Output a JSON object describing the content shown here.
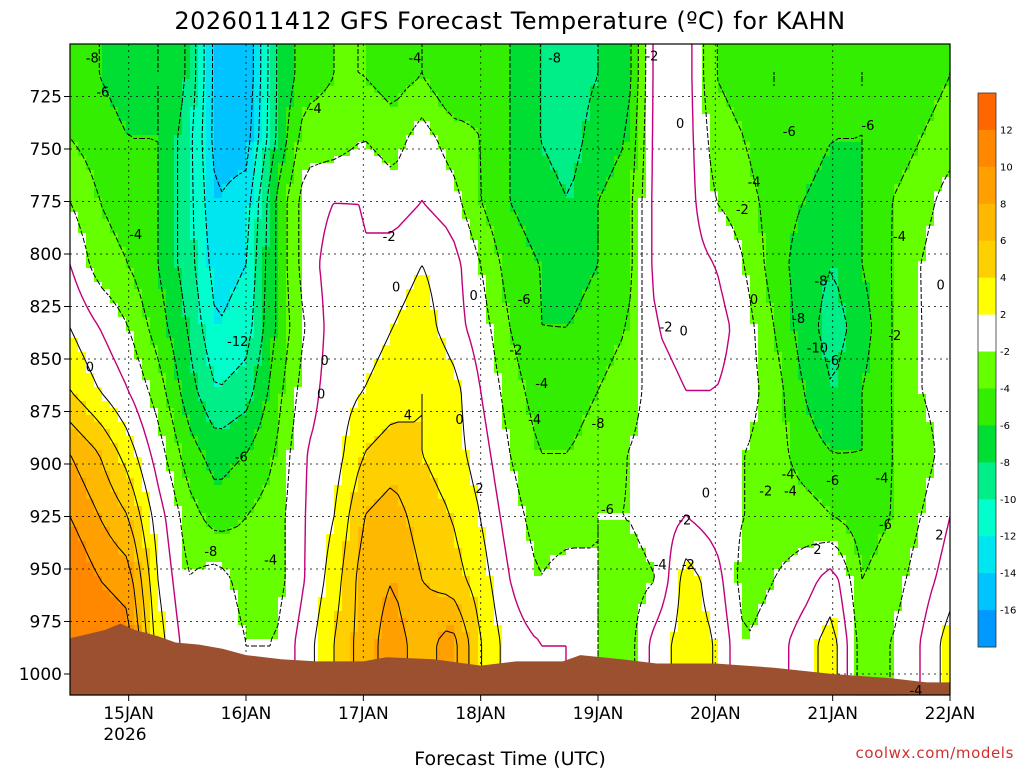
{
  "chart_data": {
    "type": "heatmap",
    "title": "2026011412 GFS Forecast Temperature (ºC) for KAHN",
    "xlabel": "Forecast Time (UTC)",
    "ylabel": "",
    "credit": "coolwx.com/models",
    "year_label": "2026",
    "x_ticks": [
      "15JAN",
      "16JAN",
      "17JAN",
      "18JAN",
      "19JAN",
      "20JAN",
      "21JAN",
      "22JAN"
    ],
    "xlim_days": [
      14.5,
      22.0
    ],
    "y_ticks": [
      725,
      750,
      775,
      800,
      825,
      850,
      875,
      900,
      925,
      950,
      975,
      1000
    ],
    "ylim_hpa": [
      700,
      1010
    ],
    "y_inverted": true,
    "colorbar": {
      "labels": [
        12,
        10,
        8,
        6,
        4,
        2,
        -2,
        -4,
        -6,
        -8,
        -10,
        -12,
        -14,
        -16
      ],
      "bins": [
        {
          "min": 12,
          "max": 14,
          "color": "#ff6600"
        },
        {
          "min": 10,
          "max": 12,
          "color": "#ff8800"
        },
        {
          "min": 8,
          "max": 10,
          "color": "#ffa000"
        },
        {
          "min": 6,
          "max": 8,
          "color": "#ffb800"
        },
        {
          "min": 4,
          "max": 6,
          "color": "#ffd000"
        },
        {
          "min": 2,
          "max": 4,
          "color": "#ffff00"
        },
        {
          "min": -2,
          "max": 2,
          "color": "#ffffff"
        },
        {
          "min": -4,
          "max": -2,
          "color": "#66ff00"
        },
        {
          "min": -6,
          "max": -4,
          "color": "#33ee00"
        },
        {
          "min": -8,
          "max": -6,
          "color": "#00dd33"
        },
        {
          "min": -10,
          "max": -8,
          "color": "#00ee88"
        },
        {
          "min": -12,
          "max": -10,
          "color": "#00ffcc"
        },
        {
          "min": -14,
          "max": -12,
          "color": "#00e6f0"
        },
        {
          "min": -16,
          "max": -14,
          "color": "#00c4ff"
        },
        {
          "min": -18,
          "max": -16,
          "color": "#0099ff"
        }
      ]
    },
    "temperature_grid": {
      "levels_hpa": [
        715,
        745,
        775,
        805,
        835,
        865,
        895,
        925,
        955,
        985
      ],
      "times_day": [
        14.5,
        14.75,
        15.0,
        15.25,
        15.5,
        15.75,
        16.0,
        16.25,
        16.5,
        16.75,
        17.0,
        17.25,
        17.5,
        17.75,
        18.0,
        18.25,
        18.5,
        18.75,
        19.0,
        19.25,
        19.5,
        19.75,
        20.0,
        20.25,
        20.5,
        20.75,
        21.0,
        21.25,
        21.5,
        21.75,
        22.0
      ],
      "values_c": [
        [
          -5,
          -6,
          -7,
          -6,
          -8,
          -15,
          -16,
          -8,
          -5,
          -4,
          -4,
          -5,
          -4,
          -6,
          -5,
          -6,
          -8,
          -9,
          -8,
          -7,
          1,
          1,
          -4,
          -5,
          -6,
          -5,
          -5,
          -6,
          -6,
          -5,
          -4
        ],
        [
          -4,
          -5,
          -6,
          -6,
          -9,
          -15,
          -15,
          -8,
          -3,
          -3,
          -2,
          -3,
          -1,
          -3,
          -4,
          -6,
          -8,
          -9,
          -7,
          -6,
          1,
          1,
          -3,
          -4,
          -6,
          -5,
          -6,
          -6,
          -5,
          -4,
          -3
        ],
        [
          -2,
          -4,
          -5,
          -6,
          -9,
          -14,
          -13,
          -6,
          -1,
          0,
          0,
          -1,
          0,
          -1,
          -4,
          -6,
          -7,
          -8,
          -6,
          -5,
          1,
          1,
          -2,
          -3,
          -5,
          -6,
          -7,
          -6,
          -4,
          -3,
          -1
        ],
        [
          0,
          -3,
          -4,
          -6,
          -9,
          -13,
          -12,
          -6,
          -1,
          1,
          0,
          1,
          2,
          1,
          -2,
          -5,
          -6,
          -7,
          -6,
          -5,
          1,
          1,
          0,
          -2,
          -5,
          -7,
          -8,
          -6,
          -4,
          -2,
          0
        ],
        [
          2,
          0,
          -2,
          -5,
          -8,
          -12,
          -11,
          -6,
          -2,
          1,
          1,
          2,
          3,
          1,
          -1,
          -4,
          -6,
          -6,
          -5,
          -4,
          0,
          1,
          1,
          -1,
          -4,
          -7,
          -9,
          -7,
          -4,
          -2,
          -1
        ],
        [
          4,
          2,
          0,
          -3,
          -7,
          -10,
          -9,
          -5,
          -1,
          1,
          2,
          3,
          4,
          3,
          0,
          -3,
          -5,
          -5,
          -4,
          -3,
          -1,
          0,
          0,
          -1,
          -3,
          -6,
          -8,
          -6,
          -4,
          -2,
          -1
        ],
        [
          8,
          6,
          3,
          -1,
          -5,
          -7,
          -6,
          -4,
          0,
          1,
          4,
          5,
          4,
          3,
          1,
          -2,
          -4,
          -4,
          -3,
          -2,
          -1,
          -1,
          -1,
          -2,
          -3,
          -5,
          -6,
          -6,
          -4,
          -3,
          -1
        ],
        [
          10,
          8,
          6,
          1,
          -3,
          -5,
          -4,
          -3,
          0,
          2,
          6,
          7,
          5,
          4,
          2,
          -1,
          -3,
          -3,
          -2,
          -2,
          -1,
          0,
          -1,
          -2,
          -3,
          -3,
          -4,
          -5,
          -4,
          -2,
          0
        ],
        [
          12,
          10,
          9,
          2,
          -2,
          -1,
          -3,
          -3,
          0,
          3,
          7,
          8,
          6,
          5,
          3,
          0,
          -2,
          -1,
          -2,
          -3,
          -2,
          3,
          1,
          -3,
          -2,
          -1,
          1,
          -4,
          -3,
          -1,
          1
        ],
        [
          12,
          12,
          11,
          3,
          -1,
          0,
          -2,
          -2,
          1,
          4,
          7,
          9,
          7,
          9,
          4,
          1,
          0,
          0,
          -2,
          -3,
          1,
          3,
          2,
          -2,
          -1,
          1,
          3,
          -3,
          -2,
          0,
          3
        ]
      ]
    },
    "contour_labels": [
      {
        "text": "-8",
        "t": 14.69,
        "p": 707
      },
      {
        "text": "-6",
        "t": 14.78,
        "p": 723
      },
      {
        "text": "-4",
        "t": 15.06,
        "p": 791
      },
      {
        "text": "0",
        "t": 14.67,
        "p": 854
      },
      {
        "text": "-12",
        "t": 15.93,
        "p": 842
      },
      {
        "text": "-6",
        "t": 15.96,
        "p": 897
      },
      {
        "text": "-8",
        "t": 15.7,
        "p": 942
      },
      {
        "text": "-4",
        "t": 16.21,
        "p": 946
      },
      {
        "text": "-4",
        "t": 16.59,
        "p": 731
      },
      {
        "text": "0",
        "t": 16.67,
        "p": 851
      },
      {
        "text": "0",
        "t": 16.64,
        "p": 867
      },
      {
        "text": "-2",
        "t": 17.22,
        "p": 792
      },
      {
        "text": "0",
        "t": 17.28,
        "p": 816
      },
      {
        "text": "4",
        "t": 17.38,
        "p": 877
      },
      {
        "text": "0",
        "t": 17.94,
        "p": 820
      },
      {
        "text": "0",
        "t": 17.82,
        "p": 879
      },
      {
        "text": "2",
        "t": 17.99,
        "p": 912
      },
      {
        "text": "-4",
        "t": 17.44,
        "p": 707
      },
      {
        "text": "-8",
        "t": 18.63,
        "p": 707
      },
      {
        "text": "-6",
        "t": 18.37,
        "p": 822
      },
      {
        "text": "-2",
        "t": 18.3,
        "p": 846
      },
      {
        "text": "-4",
        "t": 18.52,
        "p": 862
      },
      {
        "text": "-4",
        "t": 18.46,
        "p": 879
      },
      {
        "text": "-8",
        "t": 19.0,
        "p": 881
      },
      {
        "text": "-6",
        "t": 19.08,
        "p": 922
      },
      {
        "text": "-2",
        "t": 19.46,
        "p": 706
      },
      {
        "text": "0",
        "t": 19.7,
        "p": 738
      },
      {
        "text": "-2",
        "t": 19.58,
        "p": 835
      },
      {
        "text": "0",
        "t": 19.73,
        "p": 837
      },
      {
        "text": "-6",
        "t": 20.63,
        "p": 742
      },
      {
        "text": "-4",
        "t": 20.33,
        "p": 766
      },
      {
        "text": "-2",
        "t": 20.23,
        "p": 779
      },
      {
        "text": "0",
        "t": 20.33,
        "p": 822
      },
      {
        "text": "-6",
        "t": 21.3,
        "p": 739
      },
      {
        "text": "-4",
        "t": 21.57,
        "p": 792
      },
      {
        "text": "-8",
        "t": 20.9,
        "p": 813
      },
      {
        "text": "-8",
        "t": 20.71,
        "p": 831
      },
      {
        "text": "-10",
        "t": 20.87,
        "p": 845
      },
      {
        "text": "-6",
        "t": 21.0,
        "p": 851
      },
      {
        "text": "-2",
        "t": 21.53,
        "p": 839
      },
      {
        "text": "0",
        "t": 21.92,
        "p": 815
      },
      {
        "text": "-4",
        "t": 20.62,
        "p": 905
      },
      {
        "text": "-2",
        "t": 20.43,
        "p": 913
      },
      {
        "text": "-4",
        "t": 20.64,
        "p": 913
      },
      {
        "text": "-6",
        "t": 21.0,
        "p": 908
      },
      {
        "text": "-4",
        "t": 21.42,
        "p": 907
      },
      {
        "text": "-6",
        "t": 21.45,
        "p": 929
      },
      {
        "text": "0",
        "t": 19.92,
        "p": 914
      },
      {
        "text": "-2",
        "t": 19.74,
        "p": 927
      },
      {
        "text": "-2",
        "t": 19.77,
        "p": 948
      },
      {
        "text": "-4",
        "t": 19.53,
        "p": 948
      },
      {
        "text": "2",
        "t": 20.87,
        "p": 941
      },
      {
        "text": "2",
        "t": 21.91,
        "p": 934
      },
      {
        "text": "-4",
        "t": 21.71,
        "p": 1008
      }
    ],
    "terrain": {
      "color": "#9b5030",
      "surface": [
        [
          14.5,
          983
        ],
        [
          14.65,
          981
        ],
        [
          14.8,
          979
        ],
        [
          14.93,
          976
        ],
        [
          15.05,
          979
        ],
        [
          15.25,
          982
        ],
        [
          15.4,
          985
        ],
        [
          15.6,
          986
        ],
        [
          15.8,
          988
        ],
        [
          16.0,
          991
        ],
        [
          16.3,
          993
        ],
        [
          16.6,
          994
        ],
        [
          17.0,
          994
        ],
        [
          17.2,
          992
        ],
        [
          17.6,
          993
        ],
        [
          18.0,
          996
        ],
        [
          18.3,
          994
        ],
        [
          18.7,
          994
        ],
        [
          18.85,
          991
        ],
        [
          19.2,
          993
        ],
        [
          19.5,
          995
        ],
        [
          20.0,
          995
        ],
        [
          20.5,
          997
        ],
        [
          21.0,
          1000
        ],
        [
          21.5,
          1002
        ],
        [
          21.8,
          1004
        ],
        [
          22.0,
          1004
        ]
      ]
    }
  }
}
